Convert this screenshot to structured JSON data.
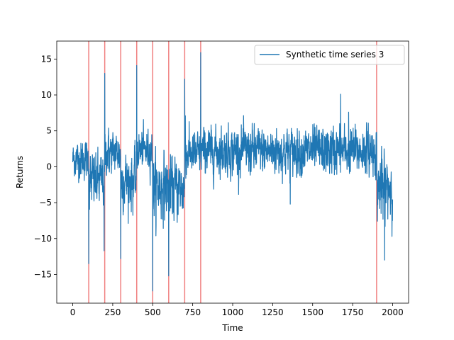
{
  "chart_data": {
    "type": "line",
    "title": "",
    "xlabel": "Time",
    "ylabel": "Returns",
    "xlim": [
      -100,
      2100
    ],
    "ylim": [
      -19,
      17.5
    ],
    "xticks": [
      0,
      250,
      500,
      750,
      1000,
      1250,
      1500,
      1750,
      2000
    ],
    "yticks": [
      -15,
      -10,
      -5,
      0,
      5,
      10,
      15
    ],
    "legend": {
      "position": "top-right"
    },
    "grid": false,
    "series": [
      {
        "name": "Synthetic time series 3",
        "color": "#1f77b4",
        "segments": [
          {
            "x_start": 0,
            "x_end": 100,
            "mean": 1.0,
            "sd": 1.2
          },
          {
            "x_start": 100,
            "x_end": 200,
            "mean": -2.0,
            "sd": 1.8
          },
          {
            "x_start": 200,
            "x_end": 300,
            "mean": 2.0,
            "sd": 1.4
          },
          {
            "x_start": 300,
            "x_end": 400,
            "mean": -2.0,
            "sd": 1.8
          },
          {
            "x_start": 400,
            "x_end": 500,
            "mean": 2.3,
            "sd": 1.3
          },
          {
            "x_start": 500,
            "x_end": 600,
            "mean": -2.8,
            "sd": 2.0
          },
          {
            "x_start": 600,
            "x_end": 700,
            "mean": -3.0,
            "sd": 2.0
          },
          {
            "x_start": 700,
            "x_end": 800,
            "mean": 1.8,
            "sd": 1.4
          },
          {
            "x_start": 800,
            "x_end": 1900,
            "mean": 2.2,
            "sd": 1.5
          },
          {
            "x_start": 1900,
            "x_end": 2000,
            "mean": -2.8,
            "sd": 2.0
          }
        ],
        "spikes": [
          {
            "x": 100,
            "y": -13.5
          },
          {
            "x": 196,
            "y": -11.7
          },
          {
            "x": 200,
            "y": 13.0
          },
          {
            "x": 300,
            "y": -12.8
          },
          {
            "x": 400,
            "y": 14.1
          },
          {
            "x": 500,
            "y": -17.3
          },
          {
            "x": 600,
            "y": -15.2
          },
          {
            "x": 700,
            "y": 12.2
          },
          {
            "x": 704,
            "y": 7.1
          },
          {
            "x": 800,
            "y": 15.9
          },
          {
            "x": 1900,
            "y": -11.6
          },
          {
            "x": 1900,
            "y": 4.8
          },
          {
            "x": 1675,
            "y": 10.1
          },
          {
            "x": 1725,
            "y": 7.6
          },
          {
            "x": 1360,
            "y": -5.2
          },
          {
            "x": 1950,
            "y": -13.0
          },
          {
            "x": 1940,
            "y": -7.3
          }
        ]
      }
    ],
    "change_points": {
      "color": "#f08080",
      "x": [
        100,
        200,
        300,
        400,
        500,
        600,
        700,
        800,
        1900
      ]
    }
  }
}
